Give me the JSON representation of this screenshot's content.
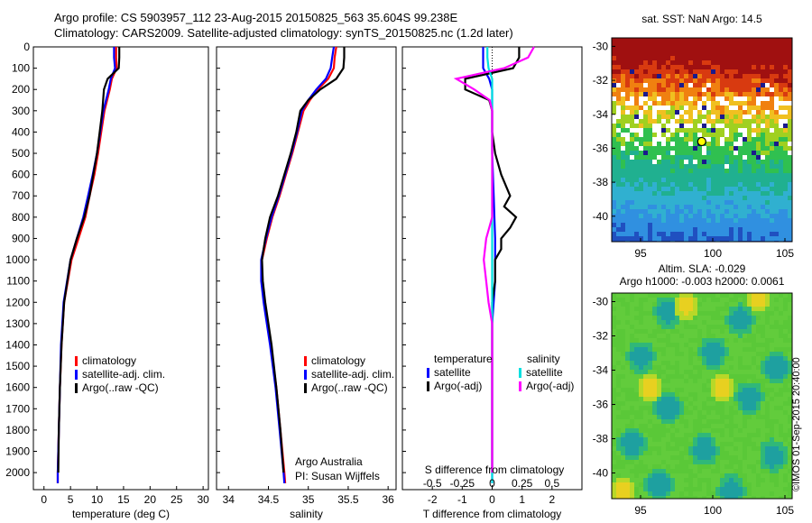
{
  "titles": {
    "line1": "Argo profile: CS 5903957_112 23-Aug-2015 20150825_563 35.604S 99.238E",
    "line2": "Climatology: CARS2009. Satellite-adjusted climatology: synTS_20150825.nc (1.2d later)"
  },
  "stamp": "©IMOS 01-Sep-2015 20:40:00",
  "colors": {
    "climatology": "#ff0000",
    "satellite": "#0000ff",
    "argo": "#000000",
    "sal_satellite": "#00e0e0",
    "sal_argo": "#ff00ff"
  },
  "chart_data": [
    {
      "type": "line",
      "id": "temperature",
      "xlabel": "temperature (deg C)",
      "ylabel": "",
      "xlim": [
        -2,
        31
      ],
      "ylim": [
        2080,
        0
      ],
      "xticks": [
        0,
        5,
        10,
        15,
        20,
        25,
        30
      ],
      "yticks": [
        0,
        100,
        200,
        300,
        400,
        500,
        600,
        700,
        800,
        900,
        1000,
        1100,
        1200,
        1300,
        1400,
        1500,
        1600,
        1700,
        1800,
        1900,
        2000
      ],
      "legend": [
        "climatology",
        "satellite-adj. clim.",
        "Argo(..raw -QC)"
      ],
      "series": [
        {
          "name": "climatology",
          "depth": [
            0,
            50,
            100,
            150,
            200,
            300,
            400,
            500,
            600,
            700,
            800,
            900,
            1000,
            1200,
            1400,
            1600,
            1800,
            2000,
            2050
          ],
          "values": [
            13.6,
            13.6,
            13.7,
            12.8,
            12.4,
            11.4,
            10.8,
            10.2,
            9.5,
            8.6,
            7.8,
            6.5,
            5.2,
            3.8,
            3.3,
            3.0,
            2.8,
            2.6,
            2.6
          ]
        },
        {
          "name": "satellite-adj. clim.",
          "depth": [
            0,
            50,
            100,
            150,
            200,
            300,
            400,
            500,
            600,
            700,
            800,
            900,
            1000,
            1200,
            1400,
            1600,
            1800,
            2000,
            2050
          ],
          "values": [
            13.2,
            13.2,
            13.4,
            12.6,
            12.2,
            11.2,
            10.6,
            10.0,
            9.2,
            8.3,
            7.4,
            6.2,
            5.0,
            3.7,
            3.2,
            3.0,
            2.8,
            2.6,
            2.6
          ]
        },
        {
          "name": "Argo(..raw -QC)",
          "depth": [
            0,
            50,
            100,
            150,
            200,
            300,
            400,
            500,
            600,
            700,
            800,
            900,
            1000,
            1200,
            1400,
            1600,
            1800,
            2000
          ],
          "values": [
            14.2,
            14.2,
            14.1,
            12.0,
            11.3,
            11.0,
            10.5,
            10.0,
            9.3,
            8.6,
            7.6,
            6.2,
            5.0,
            3.8,
            3.3,
            3.0,
            2.8,
            2.7
          ]
        }
      ]
    },
    {
      "type": "line",
      "id": "salinity",
      "xlabel": "salinity",
      "ylabel": "",
      "xlim": [
        33.85,
        36.1
      ],
      "ylim": [
        2080,
        0
      ],
      "xticks": [
        34,
        34.5,
        35,
        35.5,
        36
      ],
      "legend": [
        "climatology",
        "satellite-adj. clim.",
        "Argo(..raw -QC)"
      ],
      "annotation": [
        "Argo Australia",
        "PI: Susan Wijffels"
      ],
      "series": [
        {
          "name": "climatology",
          "depth": [
            0,
            50,
            100,
            150,
            200,
            250,
            300,
            400,
            500,
            600,
            700,
            800,
            900,
            1000,
            1100,
            1200,
            1400,
            1600,
            1800,
            2000,
            2050
          ],
          "values": [
            35.35,
            35.33,
            35.32,
            35.25,
            35.12,
            35.02,
            34.94,
            34.87,
            34.8,
            34.72,
            34.64,
            34.55,
            34.48,
            34.42,
            34.42,
            34.45,
            34.53,
            34.6,
            34.65,
            34.7,
            34.71
          ]
        },
        {
          "name": "satellite-adj. clim.",
          "depth": [
            0,
            50,
            100,
            150,
            200,
            250,
            300,
            400,
            500,
            600,
            700,
            800,
            900,
            1000,
            1100,
            1200,
            1400,
            1600,
            1800,
            2000,
            2050
          ],
          "values": [
            35.32,
            35.3,
            35.28,
            35.22,
            35.1,
            35.0,
            34.92,
            34.86,
            34.79,
            34.71,
            34.63,
            34.54,
            34.47,
            34.41,
            34.41,
            34.44,
            34.52,
            34.59,
            34.64,
            34.69,
            34.7
          ]
        },
        {
          "name": "Argo(..raw -QC)",
          "depth": [
            0,
            50,
            100,
            150,
            200,
            250,
            300,
            400,
            500,
            600,
            700,
            800,
            900,
            1000,
            1100,
            1200,
            1400,
            1600,
            1800,
            2000
          ],
          "values": [
            35.45,
            35.45,
            35.44,
            35.35,
            35.15,
            35.0,
            34.9,
            34.85,
            34.78,
            34.7,
            34.62,
            34.52,
            34.46,
            34.42,
            34.43,
            34.46,
            34.54,
            34.6,
            34.65,
            34.69
          ]
        }
      ]
    },
    {
      "type": "line",
      "id": "difference",
      "xlabel": "T difference from climatology",
      "toplabel": "S difference from climatology",
      "top_ticks": [
        "-0.5",
        "-0.25",
        "0",
        "0.25",
        "0.5"
      ],
      "xlim": [
        -3,
        3
      ],
      "ylim": [
        2080,
        0
      ],
      "xticks": [
        -2,
        -1,
        0,
        1,
        2
      ],
      "xticklabels": [
        "-2",
        "-1",
        "0",
        "1",
        "2"
      ],
      "legend": {
        "temperature": [
          "satellite",
          "Argo(-adj)"
        ],
        "salinity": [
          "satellite",
          "Argo(-adj)"
        ],
        "headers": [
          "temperature",
          "salinity"
        ]
      },
      "series": [
        {
          "name": "T satellite",
          "depth": [
            0,
            50,
            100,
            150,
            200,
            250,
            300,
            500,
            700,
            900,
            1100,
            1300,
            1500,
            1700,
            1900,
            2050
          ],
          "values": [
            -0.3,
            -0.3,
            -0.3,
            -0.1,
            0.0,
            0.0,
            0.0,
            0.0,
            0.05,
            0.1,
            0.1,
            0.0,
            0.0,
            0.0,
            0.0,
            0.0
          ]
        },
        {
          "name": "T Argo(-adj)",
          "depth": [
            0,
            50,
            100,
            150,
            200,
            250,
            300,
            400,
            500,
            600,
            700,
            750,
            800,
            850,
            900,
            950,
            1000,
            1100,
            1200,
            1300,
            1500,
            1700,
            1900,
            2000
          ],
          "values": [
            0.9,
            0.9,
            0.7,
            -0.9,
            -0.9,
            -0.1,
            0.0,
            0.0,
            0.1,
            0.3,
            0.6,
            0.4,
            0.8,
            0.6,
            0.3,
            0.3,
            0.1,
            0.1,
            0.0,
            0.0,
            0.0,
            0.0,
            0.0,
            0.0
          ]
        },
        {
          "name": "S satellite",
          "depth": [
            0,
            50,
            100,
            150,
            200,
            300,
            500,
            700,
            900,
            1100,
            1300,
            1500,
            1700,
            1900,
            2050
          ],
          "values": [
            -0.04,
            -0.04,
            -0.03,
            0.0,
            0.0,
            0.0,
            0.0,
            0.0,
            0.0,
            0.0,
            0.0,
            0.0,
            0.0,
            0.0,
            0.0
          ]
        },
        {
          "name": "S Argo(-adj)",
          "depth": [
            0,
            50,
            100,
            150,
            200,
            250,
            300,
            500,
            700,
            800,
            900,
            1000,
            1100,
            1200,
            1300,
            1500,
            1700,
            1900,
            2000
          ],
          "values": [
            0.35,
            0.3,
            0.1,
            -0.3,
            -0.15,
            -0.02,
            0.0,
            0.0,
            0.0,
            0.0,
            -0.05,
            -0.07,
            -0.05,
            -0.03,
            0.0,
            0.0,
            0.0,
            0.0,
            0.0
          ]
        }
      ]
    },
    {
      "type": "heatmap",
      "id": "sst-map",
      "title": "sat. SST: NaN Argo: 14.5",
      "xticks": [
        95,
        100,
        105
      ],
      "yticks": [
        -30,
        -32,
        -34,
        -36,
        -38,
        -40
      ],
      "xlim": [
        93,
        105.5
      ],
      "ylim": [
        -41.5,
        -29.5
      ],
      "marker": {
        "lon": 99.238,
        "lat": -35.604
      }
    },
    {
      "type": "heatmap",
      "id": "sla-map",
      "title": "Altim. SLA: -0.029",
      "subtitle": "Argo h1000: -0.003 h2000: 0.0061",
      "xticks": [
        95,
        100,
        105
      ],
      "yticks": [
        -30,
        -32,
        -34,
        -36,
        -38,
        -40
      ],
      "xlim": [
        93,
        105.5
      ],
      "ylim": [
        -41.5,
        -29.5
      ]
    }
  ]
}
